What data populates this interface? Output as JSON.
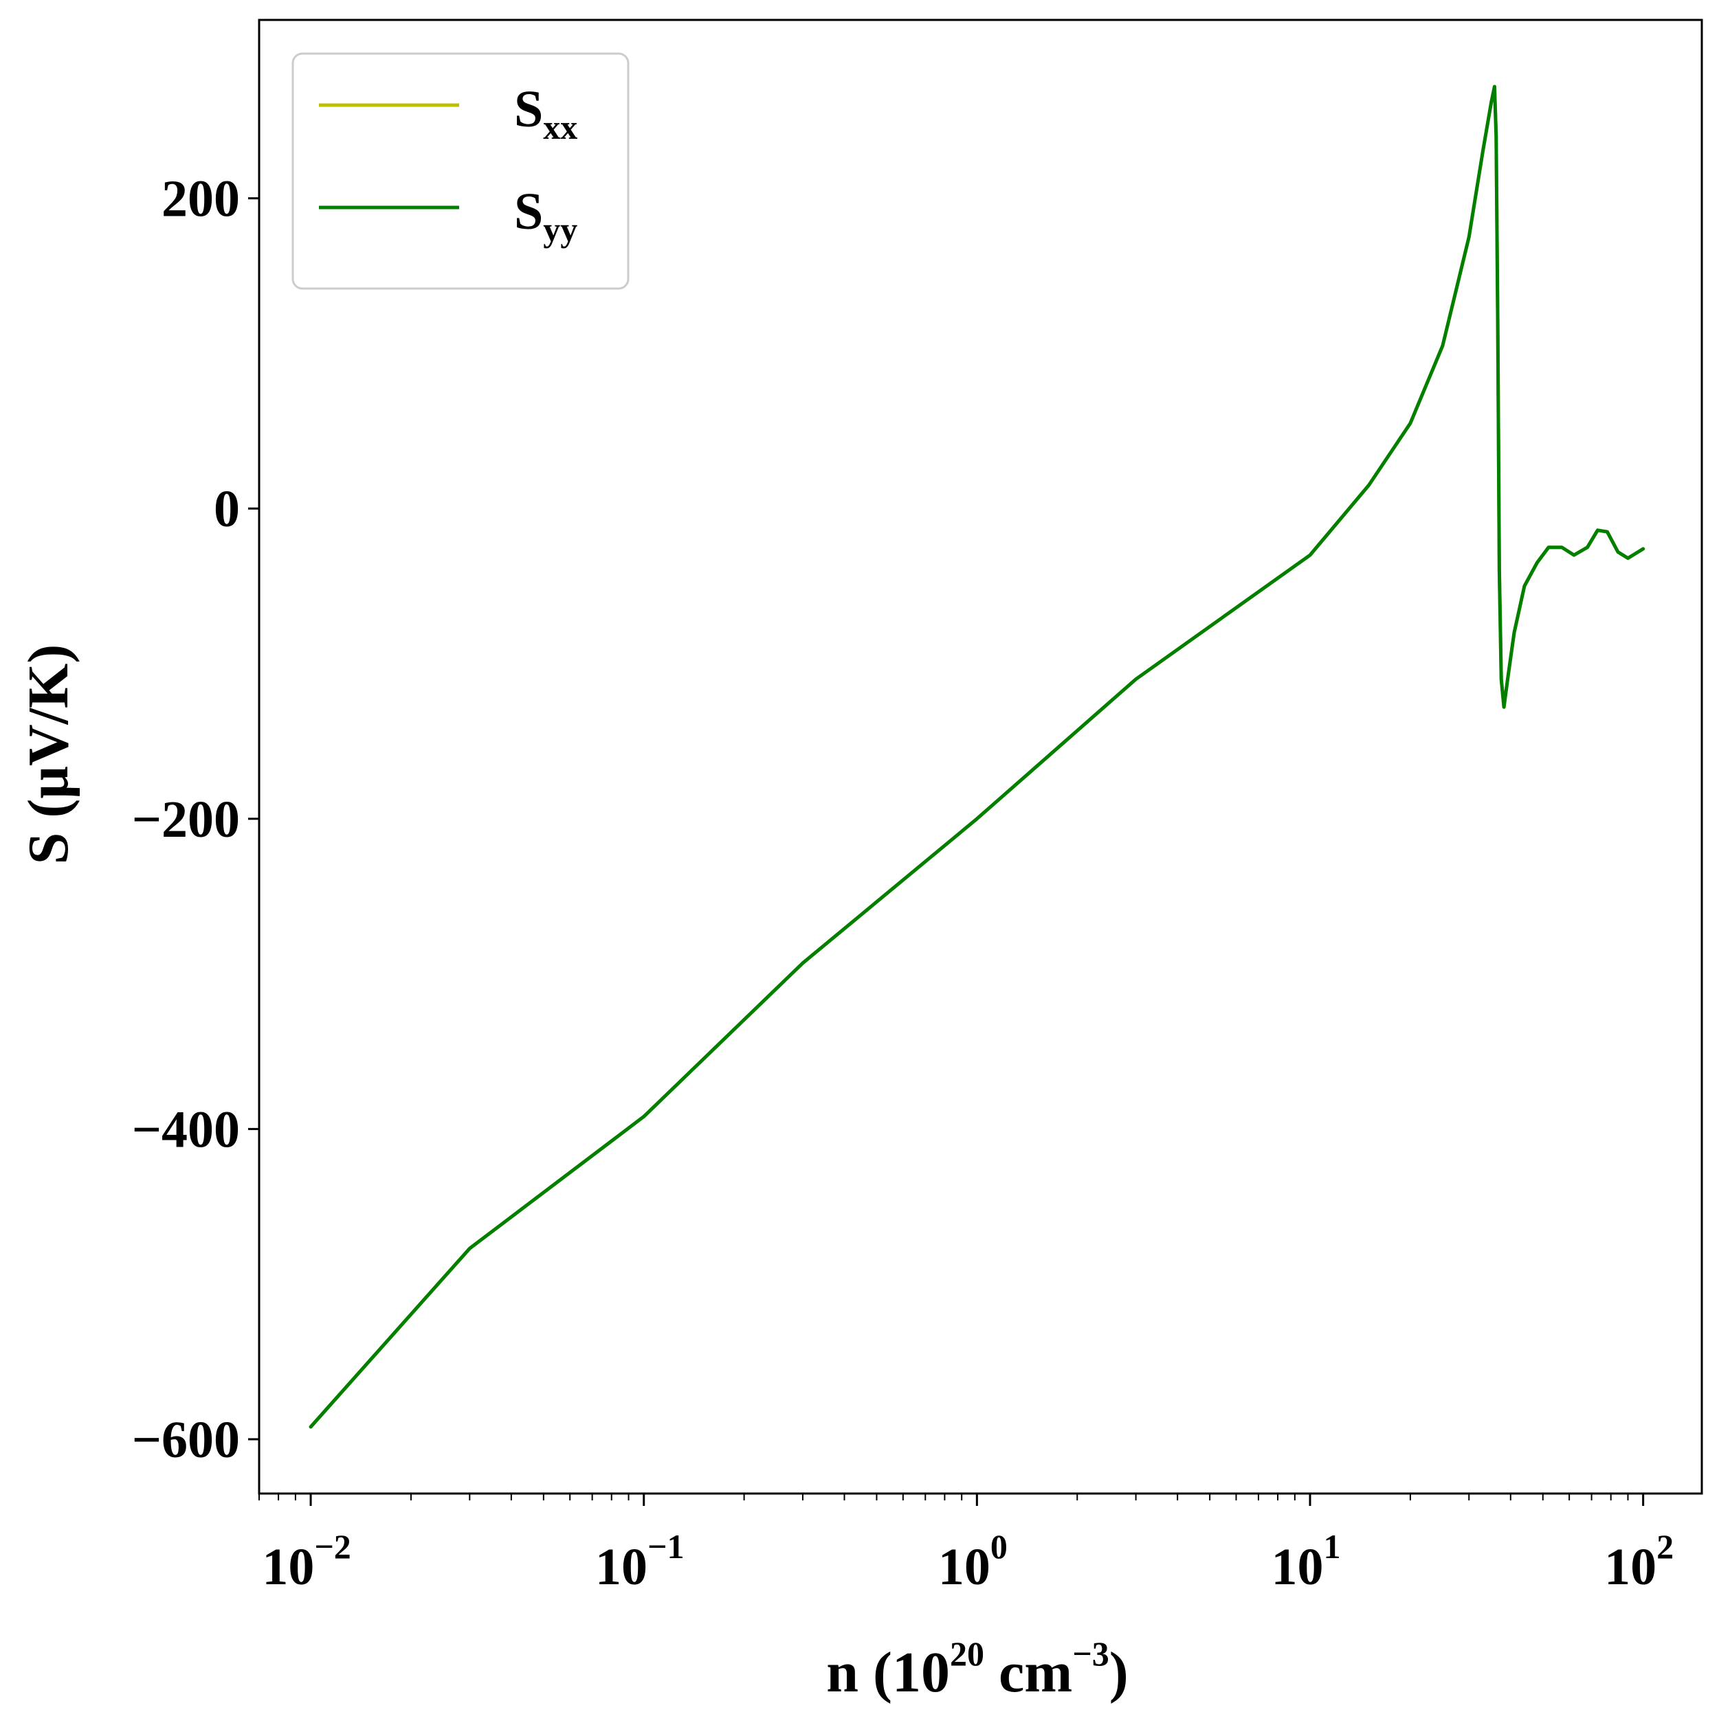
{
  "chart_data": {
    "type": "line",
    "xscale": "log",
    "xlim": [
      0.007,
      150
    ],
    "ylim": [
      -635,
      315
    ],
    "grid": false,
    "legend_position": "top-left",
    "xlabel": {
      "base": "n (10",
      "exp1": "20",
      "mid": " cm",
      "exp2": "−3",
      "end": ")"
    },
    "ylabel": "S (μV/K)",
    "yticks": [
      {
        "value": 200,
        "label": "200"
      },
      {
        "value": 0,
        "label": "0"
      },
      {
        "value": -200,
        "label": "−200"
      },
      {
        "value": -400,
        "label": "−400"
      },
      {
        "value": -600,
        "label": "−600"
      }
    ],
    "xticks": [
      {
        "value": 0.01,
        "base": "10",
        "exp": "−2"
      },
      {
        "value": 0.1,
        "base": "10",
        "exp": "−1"
      },
      {
        "value": 1,
        "base": "10",
        "exp": "0"
      },
      {
        "value": 10,
        "base": "10",
        "exp": "1"
      },
      {
        "value": 100,
        "base": "10",
        "exp": "2"
      }
    ],
    "series": [
      {
        "name": "S",
        "name_sub": "xx",
        "color": "#bfbf00",
        "points": [
          [
            0.01,
            -592
          ],
          [
            0.03,
            -477
          ],
          [
            0.1,
            -392
          ],
          [
            0.3,
            -293
          ],
          [
            1,
            -200
          ],
          [
            3,
            -110
          ],
          [
            10,
            -30
          ],
          [
            15,
            15
          ],
          [
            20,
            55
          ],
          [
            25,
            105
          ],
          [
            30,
            175
          ],
          [
            33,
            230
          ],
          [
            35,
            262
          ],
          [
            35.8,
            272
          ],
          [
            36.2,
            240
          ],
          [
            36.6,
            120
          ],
          [
            37.0,
            -40
          ],
          [
            37.5,
            -110
          ],
          [
            38.2,
            -128
          ],
          [
            39.2,
            -110
          ],
          [
            41,
            -80
          ],
          [
            44,
            -50
          ],
          [
            48,
            -35
          ],
          [
            52,
            -25
          ],
          [
            57,
            -25
          ],
          [
            62,
            -30
          ],
          [
            68,
            -25
          ],
          [
            73,
            -14
          ],
          [
            78,
            -15
          ],
          [
            84,
            -28
          ],
          [
            90,
            -32
          ],
          [
            100,
            -26
          ]
        ]
      },
      {
        "name": "S",
        "name_sub": "yy",
        "color": "#007f00",
        "points": [
          [
            0.01,
            -592
          ],
          [
            0.03,
            -477
          ],
          [
            0.1,
            -392
          ],
          [
            0.3,
            -293
          ],
          [
            1,
            -200
          ],
          [
            3,
            -110
          ],
          [
            10,
            -30
          ],
          [
            15,
            15
          ],
          [
            20,
            55
          ],
          [
            25,
            105
          ],
          [
            30,
            175
          ],
          [
            33,
            230
          ],
          [
            35,
            262
          ],
          [
            35.8,
            272
          ],
          [
            36.2,
            240
          ],
          [
            36.6,
            120
          ],
          [
            37.0,
            -40
          ],
          [
            37.5,
            -110
          ],
          [
            38.2,
            -128
          ],
          [
            39.2,
            -110
          ],
          [
            41,
            -80
          ],
          [
            44,
            -50
          ],
          [
            48,
            -35
          ],
          [
            52,
            -25
          ],
          [
            57,
            -25
          ],
          [
            62,
            -30
          ],
          [
            68,
            -25
          ],
          [
            73,
            -14
          ],
          [
            78,
            -15
          ],
          [
            84,
            -28
          ],
          [
            90,
            -32
          ],
          [
            100,
            -26
          ]
        ]
      }
    ]
  }
}
